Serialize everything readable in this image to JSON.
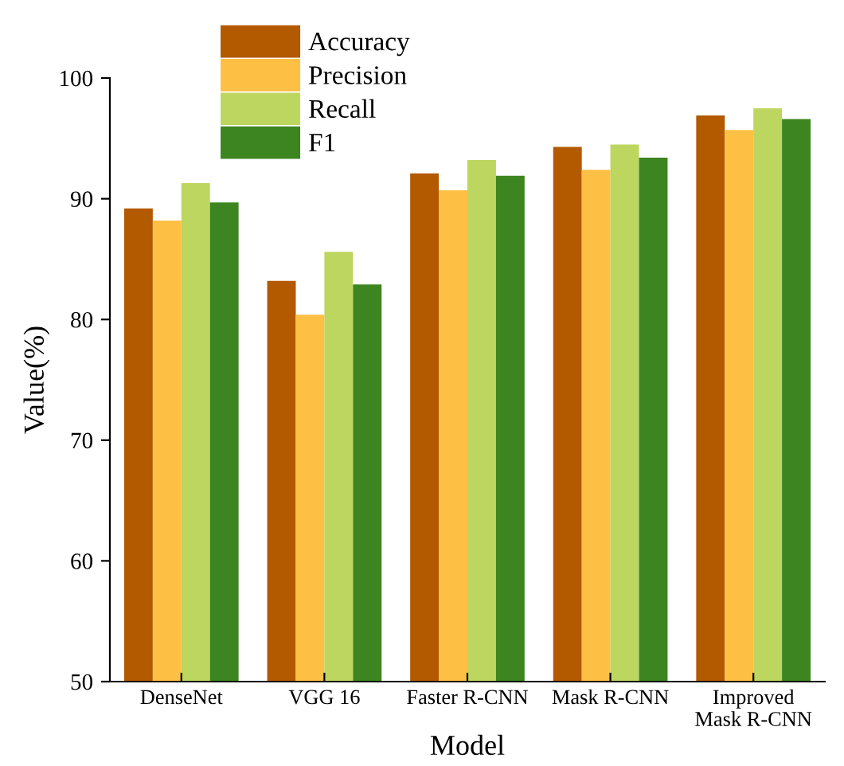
{
  "chart_data": {
    "type": "bar",
    "xlabel": "Model",
    "ylabel": "Value(%)",
    "categories": [
      "DenseNet",
      "VGG 16",
      "Faster R-CNN",
      "Mask R-CNN",
      "Improved\nMask R-CNN"
    ],
    "series": [
      {
        "name": "Accuracy",
        "color": "#b35900",
        "values": [
          89.2,
          83.2,
          92.1,
          94.3,
          96.9
        ]
      },
      {
        "name": "Precision",
        "color": "#fec044",
        "values": [
          88.2,
          80.4,
          90.7,
          92.4,
          95.7
        ]
      },
      {
        "name": "Recall",
        "color": "#bdd660",
        "values": [
          91.3,
          85.6,
          93.2,
          94.5,
          97.5
        ]
      },
      {
        "name": "F1",
        "color": "#3c8520",
        "values": [
          89.7,
          82.9,
          91.9,
          93.4,
          96.6
        ]
      }
    ],
    "ylim": [
      50,
      100
    ],
    "yticks": [
      50,
      60,
      70,
      80,
      90,
      100
    ],
    "grid": false,
    "legend": "top left"
  }
}
